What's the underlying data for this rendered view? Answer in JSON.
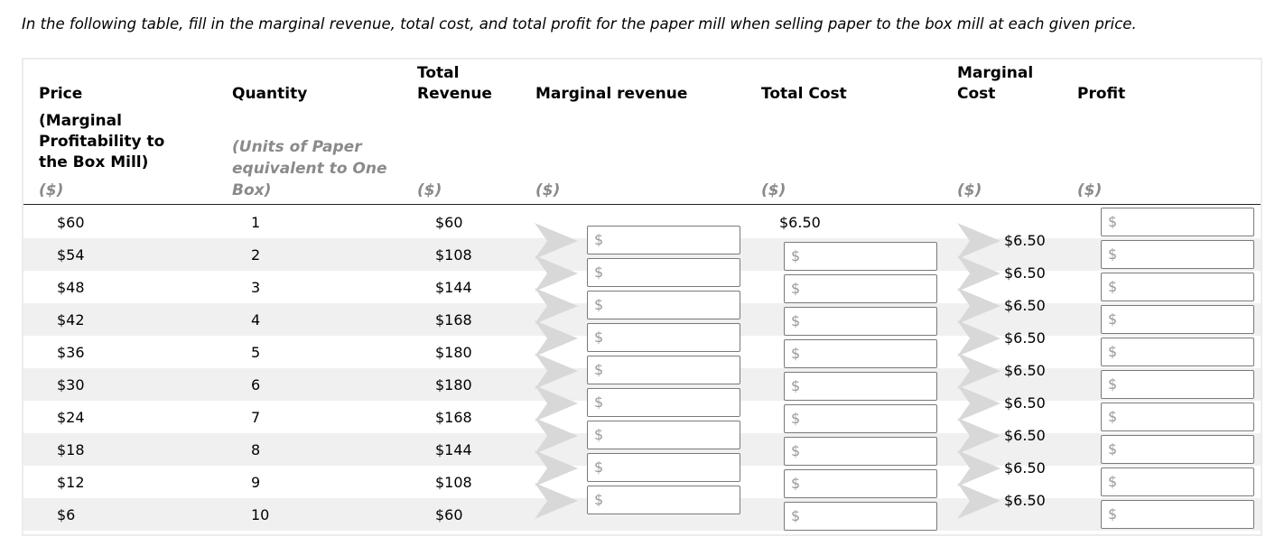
{
  "instruction": "In the following table, fill in the marginal revenue, total cost, and total profit for the paper mill when selling paper to the box mill at each given price.",
  "headers": {
    "price": "Price",
    "price_sub": "(Marginal Profitability to the Box Mill)",
    "quantity": "Quantity",
    "quantity_sub": "(Units of Paper equivalent to One Box)",
    "total_revenue": "Total Revenue",
    "marginal_revenue": "Marginal revenue",
    "total_cost": "Total Cost",
    "marginal_cost": "Marginal Cost",
    "profit": "Profit",
    "unit": "($)"
  },
  "rows": [
    {
      "price": "$60",
      "quantity": "1",
      "total_revenue": "$60",
      "total_cost": "$6.50"
    },
    {
      "price": "$54",
      "quantity": "2",
      "total_revenue": "$108"
    },
    {
      "price": "$48",
      "quantity": "3",
      "total_revenue": "$144"
    },
    {
      "price": "$42",
      "quantity": "4",
      "total_revenue": "$168"
    },
    {
      "price": "$36",
      "quantity": "5",
      "total_revenue": "$180"
    },
    {
      "price": "$30",
      "quantity": "6",
      "total_revenue": "$180"
    },
    {
      "price": "$24",
      "quantity": "7",
      "total_revenue": "$168"
    },
    {
      "price": "$18",
      "quantity": "8",
      "total_revenue": "$144"
    },
    {
      "price": "$12",
      "quantity": "9",
      "total_revenue": "$108"
    },
    {
      "price": "$6",
      "quantity": "10",
      "total_revenue": "$60"
    }
  ],
  "marginal_cost_values": [
    "$6.50",
    "$6.50",
    "$6.50",
    "$6.50",
    "$6.50",
    "$6.50",
    "$6.50",
    "$6.50",
    "$6.50"
  ],
  "input_prefix": "$",
  "colors": {
    "stripe": "#f0f0f0",
    "unit_text": "#8a8a8a",
    "chevron": "#d8d8d8",
    "input_border": "#7a7a7a"
  }
}
